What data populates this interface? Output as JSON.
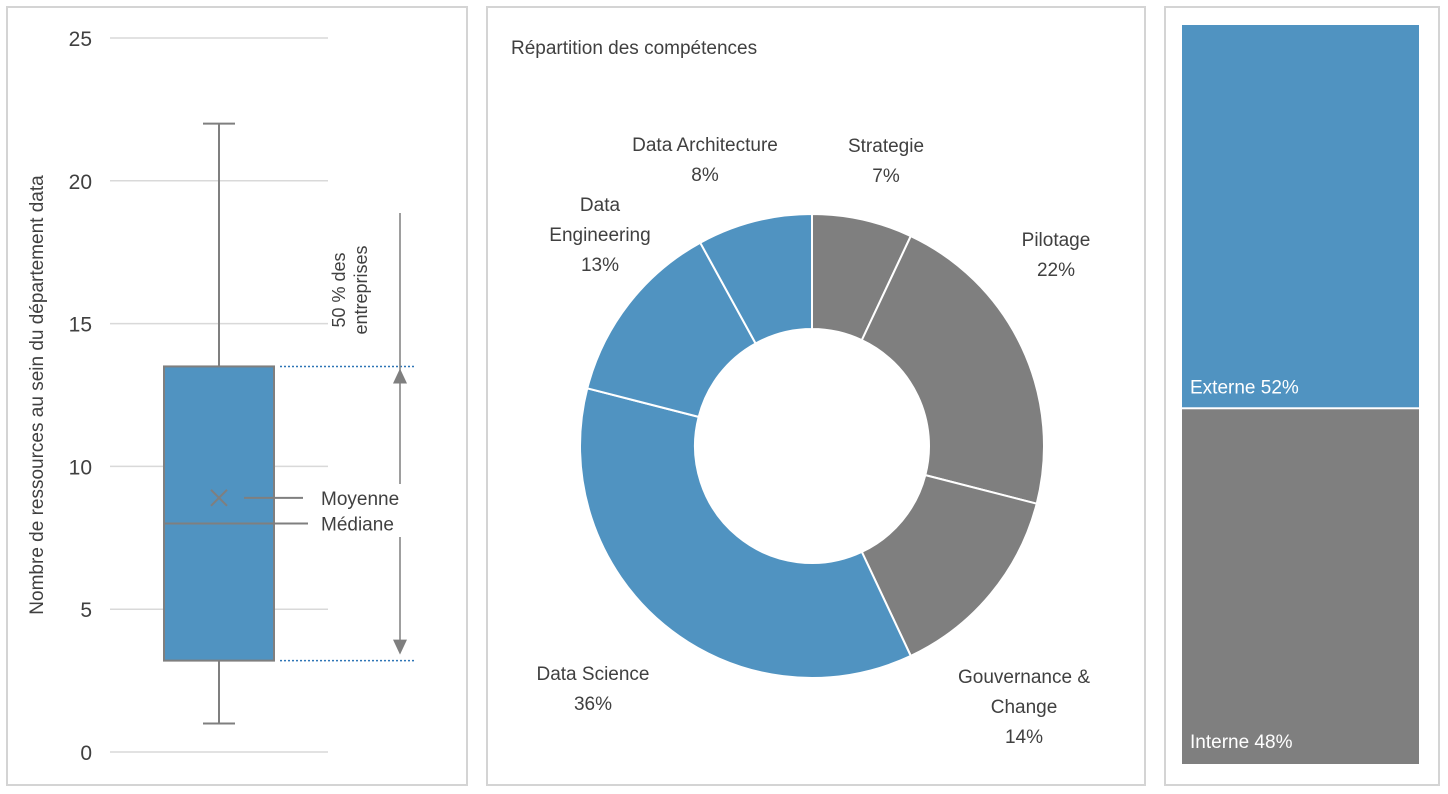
{
  "colors": {
    "blue": "#5093c1",
    "gray": "#7f7f7f",
    "grid": "#d9d9d9",
    "text": "#404040",
    "border": "#d4d4d4"
  },
  "chart_data": [
    {
      "type": "boxplot",
      "ylabel": "Nombre de ressources au sein du département data",
      "ylim": [
        0,
        25
      ],
      "yticks": [
        0,
        5,
        10,
        15,
        20,
        25
      ],
      "grid": true,
      "box": {
        "min": 1,
        "q1": 3.2,
        "median": 8,
        "mean": 8.9,
        "q3": 13.5,
        "max": 22
      },
      "annotations": {
        "mean_label": "Moyenne",
        "median_label": "Médiane",
        "range_label_line1": "50 % des",
        "range_label_line2": "entreprises"
      }
    },
    {
      "type": "donut",
      "title": "Répartition des compétences",
      "slices": [
        {
          "name": "Strategie",
          "lines": [
            "Strategie"
          ],
          "pct_label": "7%",
          "value": 7,
          "color": "#7f7f7f"
        },
        {
          "name": "Pilotage",
          "lines": [
            "Pilotage"
          ],
          "pct_label": "22%",
          "value": 22,
          "color": "#7f7f7f"
        },
        {
          "name": "Gouvernance & Change",
          "lines": [
            "Gouvernance &",
            "Change"
          ],
          "pct_label": "14%",
          "value": 14,
          "color": "#7f7f7f"
        },
        {
          "name": "Data Science",
          "lines": [
            "Data Science"
          ],
          "pct_label": "36%",
          "value": 36,
          "color": "#5093c1"
        },
        {
          "name": "Data Engineering",
          "lines": [
            "Data",
            "Engineering"
          ],
          "pct_label": "13%",
          "value": 13,
          "color": "#5093c1"
        },
        {
          "name": "Data Architecture",
          "lines": [
            "Data Architecture"
          ],
          "pct_label": "8%",
          "value": 8,
          "color": "#5093c1"
        }
      ]
    },
    {
      "type": "stacked_bar",
      "segments": [
        {
          "label": "Externe 52%",
          "value": 52,
          "color": "#5093c1"
        },
        {
          "label": "Interne 48%",
          "value": 48,
          "color": "#7f7f7f"
        }
      ]
    }
  ]
}
